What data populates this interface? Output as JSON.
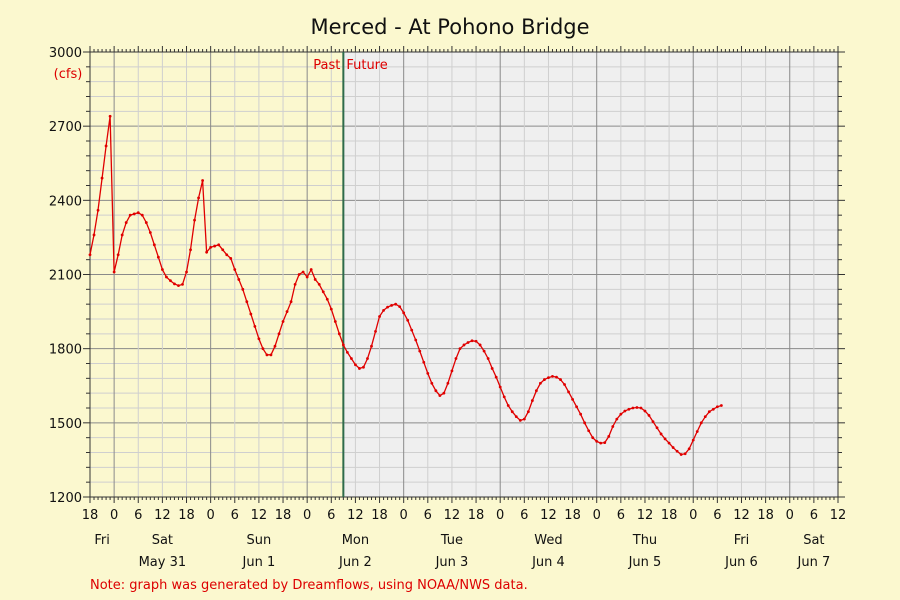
{
  "chart_data": {
    "type": "line",
    "title": "Merced - At Pohono Bridge",
    "unit_label": "(cfs)",
    "ylim": [
      1200,
      3000
    ],
    "yticks": [
      "3000",
      "2700",
      "2400",
      "2100",
      "1800",
      "1500",
      "1200"
    ],
    "y_minor_step": 60,
    "x_range_hours": [
      0,
      186
    ],
    "x_origin_label": "Fri May 30 18:00",
    "x_tick_step_hours": 6,
    "xtick_labels": [
      "18",
      "0",
      "6",
      "12",
      "18",
      "0",
      "6",
      "12",
      "18",
      "0",
      "6",
      "12",
      "18",
      "0",
      "6",
      "12",
      "18",
      "0",
      "6",
      "12",
      "18",
      "0",
      "6",
      "12",
      "18",
      "0",
      "6",
      "12",
      "18",
      "0",
      "6",
      "12"
    ],
    "day_labels": [
      {
        "hour": 3,
        "text": "Fri"
      },
      {
        "hour": 18,
        "text": "Sat"
      },
      {
        "hour": 42,
        "text": "Sun"
      },
      {
        "hour": 66,
        "text": "Mon"
      },
      {
        "hour": 90,
        "text": "Tue"
      },
      {
        "hour": 114,
        "text": "Wed"
      },
      {
        "hour": 138,
        "text": "Thu"
      },
      {
        "hour": 162,
        "text": "Fri"
      },
      {
        "hour": 180,
        "text": "Sat"
      }
    ],
    "date_labels": [
      {
        "hour": 18,
        "text": "May 31"
      },
      {
        "hour": 42,
        "text": "Jun 1"
      },
      {
        "hour": 66,
        "text": "Jun 2"
      },
      {
        "hour": 90,
        "text": "Jun 3"
      },
      {
        "hour": 114,
        "text": "Jun 4"
      },
      {
        "hour": 138,
        "text": "Jun 5"
      },
      {
        "hour": 162,
        "text": "Jun 6"
      },
      {
        "hour": 180,
        "text": "Jun 7"
      }
    ],
    "now_hour": 63,
    "past_label": "Past",
    "future_label": "Future",
    "grid": true,
    "series": [
      {
        "color": "#e00000",
        "points": [
          [
            0,
            2180
          ],
          [
            1,
            2260
          ],
          [
            2,
            2360
          ],
          [
            3,
            2490
          ],
          [
            4,
            2620
          ],
          [
            5,
            2740
          ],
          [
            6,
            2110
          ],
          [
            7,
            2180
          ],
          [
            8,
            2260
          ],
          [
            9,
            2310
          ],
          [
            10,
            2340
          ],
          [
            11,
            2345
          ],
          [
            12,
            2350
          ],
          [
            13,
            2340
          ],
          [
            14,
            2310
          ],
          [
            15,
            2270
          ],
          [
            16,
            2220
          ],
          [
            17,
            2170
          ],
          [
            18,
            2120
          ],
          [
            19,
            2090
          ],
          [
            20,
            2075
          ],
          [
            21,
            2062
          ],
          [
            22,
            2055
          ],
          [
            23,
            2060
          ],
          [
            24,
            2110
          ],
          [
            25,
            2200
          ],
          [
            26,
            2320
          ],
          [
            27,
            2410
          ],
          [
            28,
            2480
          ],
          [
            29,
            2190
          ],
          [
            30,
            2210
          ],
          [
            31,
            2215
          ],
          [
            32,
            2220
          ],
          [
            33,
            2200
          ],
          [
            34,
            2180
          ],
          [
            35,
            2165
          ],
          [
            36,
            2120
          ],
          [
            37,
            2080
          ],
          [
            38,
            2040
          ],
          [
            39,
            1990
          ],
          [
            40,
            1940
          ],
          [
            41,
            1890
          ],
          [
            42,
            1840
          ],
          [
            43,
            1800
          ],
          [
            44,
            1775
          ],
          [
            45,
            1775
          ],
          [
            46,
            1810
          ],
          [
            47,
            1860
          ],
          [
            48,
            1910
          ],
          [
            49,
            1950
          ],
          [
            50,
            1990
          ],
          [
            51,
            2060
          ],
          [
            52,
            2100
          ],
          [
            53,
            2110
          ],
          [
            54,
            2090
          ],
          [
            55,
            2120
          ],
          [
            56,
            2080
          ],
          [
            57,
            2060
          ],
          [
            58,
            2030
          ],
          [
            59,
            2000
          ],
          [
            60,
            1960
          ],
          [
            61,
            1910
          ],
          [
            62,
            1860
          ],
          [
            63,
            1815
          ],
          [
            64,
            1785
          ],
          [
            65,
            1760
          ],
          [
            66,
            1735
          ],
          [
            67,
            1720
          ],
          [
            68,
            1725
          ],
          [
            69,
            1760
          ],
          [
            70,
            1810
          ],
          [
            71,
            1870
          ],
          [
            72,
            1930
          ],
          [
            73,
            1955
          ],
          [
            74,
            1968
          ],
          [
            75,
            1975
          ],
          [
            76,
            1980
          ],
          [
            77,
            1970
          ],
          [
            78,
            1945
          ],
          [
            79,
            1915
          ],
          [
            80,
            1875
          ],
          [
            81,
            1835
          ],
          [
            82,
            1790
          ],
          [
            83,
            1745
          ],
          [
            84,
            1700
          ],
          [
            85,
            1660
          ],
          [
            86,
            1630
          ],
          [
            87,
            1610
          ],
          [
            88,
            1620
          ],
          [
            89,
            1660
          ],
          [
            90,
            1710
          ],
          [
            91,
            1760
          ],
          [
            92,
            1800
          ],
          [
            93,
            1815
          ],
          [
            94,
            1825
          ],
          [
            95,
            1832
          ],
          [
            96,
            1830
          ],
          [
            97,
            1815
          ],
          [
            98,
            1790
          ],
          [
            99,
            1760
          ],
          [
            100,
            1720
          ],
          [
            101,
            1685
          ],
          [
            102,
            1645
          ],
          [
            103,
            1605
          ],
          [
            104,
            1570
          ],
          [
            105,
            1545
          ],
          [
            106,
            1525
          ],
          [
            107,
            1510
          ],
          [
            108,
            1515
          ],
          [
            109,
            1545
          ],
          [
            110,
            1590
          ],
          [
            111,
            1630
          ],
          [
            112,
            1660
          ],
          [
            113,
            1675
          ],
          [
            114,
            1683
          ],
          [
            115,
            1688
          ],
          [
            116,
            1685
          ],
          [
            117,
            1675
          ],
          [
            118,
            1655
          ],
          [
            119,
            1625
          ],
          [
            120,
            1595
          ],
          [
            121,
            1565
          ],
          [
            122,
            1535
          ],
          [
            123,
            1500
          ],
          [
            124,
            1468
          ],
          [
            125,
            1440
          ],
          [
            126,
            1425
          ],
          [
            127,
            1418
          ],
          [
            128,
            1420
          ],
          [
            129,
            1445
          ],
          [
            130,
            1485
          ],
          [
            131,
            1515
          ],
          [
            132,
            1535
          ],
          [
            133,
            1548
          ],
          [
            134,
            1555
          ],
          [
            135,
            1560
          ],
          [
            136,
            1562
          ],
          [
            137,
            1560
          ],
          [
            138,
            1548
          ],
          [
            139,
            1530
          ],
          [
            140,
            1505
          ],
          [
            141,
            1480
          ],
          [
            142,
            1455
          ],
          [
            143,
            1435
          ],
          [
            144,
            1418
          ],
          [
            145,
            1400
          ],
          [
            146,
            1385
          ],
          [
            147,
            1372
          ],
          [
            148,
            1375
          ],
          [
            149,
            1395
          ],
          [
            150,
            1430
          ],
          [
            151,
            1465
          ],
          [
            152,
            1500
          ],
          [
            153,
            1525
          ],
          [
            154,
            1545
          ],
          [
            155,
            1555
          ],
          [
            156,
            1565
          ],
          [
            157,
            1570
          ]
        ]
      }
    ]
  },
  "footer": {
    "note": "Note: graph was generated by Dreamflows, using NOAA/NWS data."
  }
}
